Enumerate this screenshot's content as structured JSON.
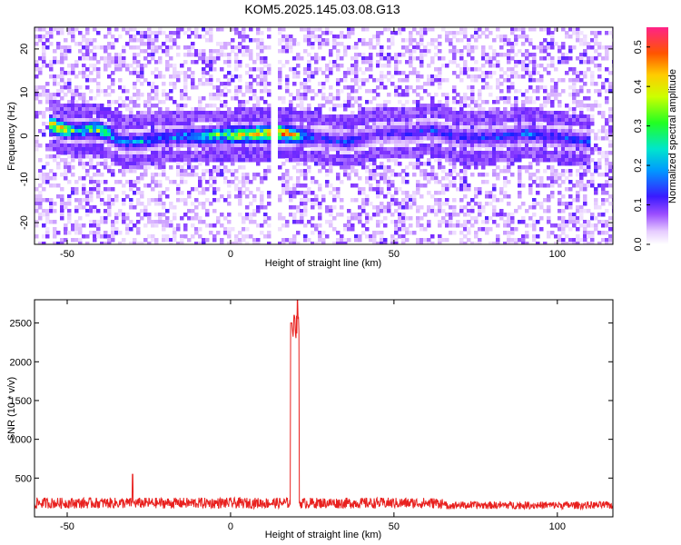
{
  "title": "KOM5.2025.145.03.08.G13",
  "colors": {
    "snr_line": "#e8201e",
    "frame": "#000000"
  },
  "chart_data": [
    {
      "type": "heatmap",
      "name": "spectrogram",
      "xlabel": "Height of straight line (km)",
      "ylabel": "Frequency (Hz)",
      "xlim": [
        -60,
        117
      ],
      "ylim": [
        -25,
        25
      ],
      "xticks": [
        -50,
        0,
        50,
        100
      ],
      "yticks": [
        -20,
        -10,
        0,
        10,
        20
      ],
      "colorbar": {
        "label": "Normalized spectral amplitude",
        "range": [
          0,
          0.55
        ],
        "ticks": [
          0.0,
          0.1,
          0.2,
          0.3,
          0.4,
          0.5
        ],
        "colormap": [
          "#ffffff",
          "#d9b3ff",
          "#7a2cff",
          "#1a1aff",
          "#00c8ff",
          "#00ff66",
          "#d4ff00",
          "#ff9900",
          "#ff0000",
          "#ff2a80"
        ]
      },
      "gap_km": [
        12,
        14
      ],
      "ridge": [
        {
          "x": -56,
          "y": 3,
          "amp": 0.45
        },
        {
          "x": -52,
          "y": 2,
          "amp": 0.4
        },
        {
          "x": -47,
          "y": 1.5,
          "amp": 0.3
        },
        {
          "x": -42,
          "y": 2,
          "amp": 0.35
        },
        {
          "x": -38,
          "y": 1,
          "amp": 0.3
        },
        {
          "x": -34,
          "y": -1,
          "amp": 0.2
        },
        {
          "x": -28,
          "y": -1,
          "amp": 0.25
        },
        {
          "x": -22,
          "y": 0,
          "amp": 0.2
        },
        {
          "x": 16,
          "y": 1,
          "amp": 0.5
        },
        {
          "x": 25,
          "y": 0,
          "amp": 0.18
        },
        {
          "x": 35,
          "y": -1,
          "amp": 0.2
        },
        {
          "x": 45,
          "y": 1,
          "amp": 0.15
        },
        {
          "x": 55,
          "y": 1,
          "amp": 0.18
        },
        {
          "x": 60,
          "y": 2,
          "amp": 0.2
        },
        {
          "x": 70,
          "y": 0,
          "amp": 0.18
        },
        {
          "x": 80,
          "y": 0,
          "amp": 0.2
        },
        {
          "x": 90,
          "y": 1,
          "amp": 0.22
        },
        {
          "x": 100,
          "y": 0,
          "amp": 0.2
        },
        {
          "x": 110,
          "y": -1,
          "amp": 0.2
        }
      ]
    },
    {
      "type": "line",
      "name": "snr",
      "xlabel": "Height of straight line (km)",
      "ylabel": "SNR (10 * v/v)",
      "xlim": [
        -60,
        117
      ],
      "ylim": [
        0,
        2800
      ],
      "xticks": [
        -50,
        0,
        50,
        100
      ],
      "yticks": [
        500,
        1000,
        1500,
        2000,
        2500
      ],
      "baseline": 150,
      "noise_amp": 140,
      "spikes": [
        {
          "x": -30,
          "y": 550
        },
        {
          "x": 18.5,
          "y": 2500
        },
        {
          "x": 19.5,
          "y": 2600
        },
        {
          "x": 20.5,
          "y": 2800
        }
      ],
      "plateau": {
        "x_start": 18.5,
        "x_end": 21,
        "y": 2450
      }
    }
  ]
}
